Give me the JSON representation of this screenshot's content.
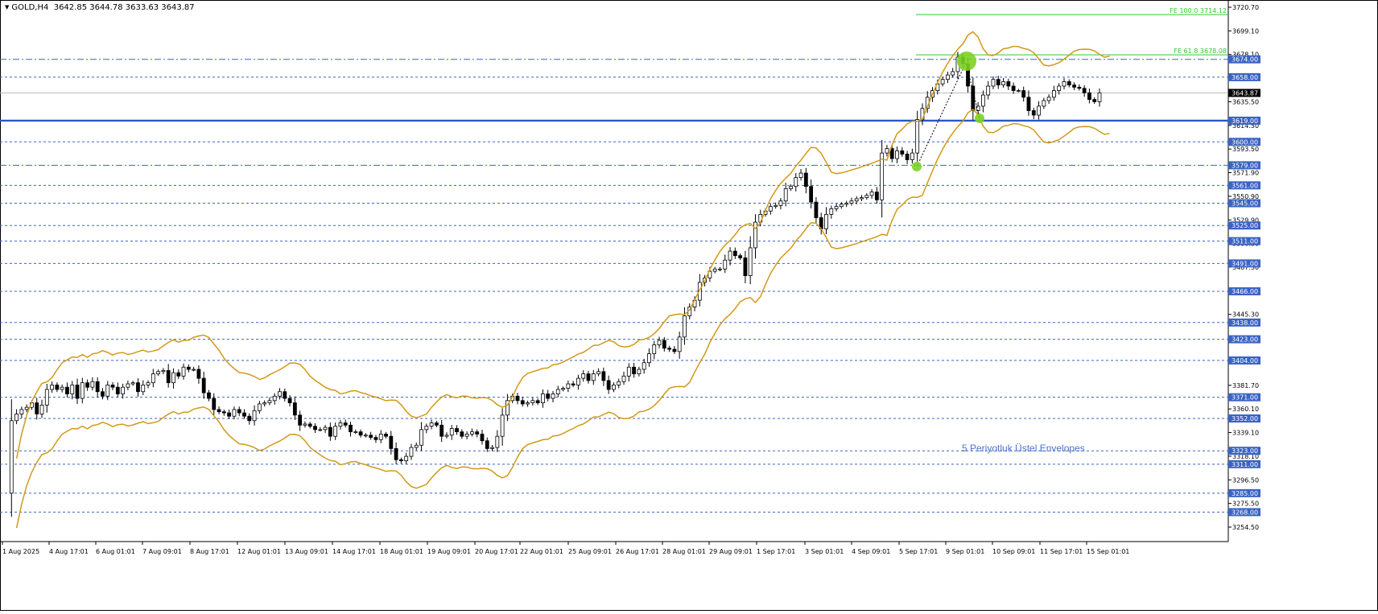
{
  "header": {
    "symbol": "GOLD,H4",
    "ohlc": "3642.85 3644.78 3633.63 3643.87"
  },
  "annotation": "5 Periyotluk Üstel Envelopes",
  "colors": {
    "candle": "#000000",
    "envelope": "#d19a17",
    "hline": "#3b63c4",
    "main_hline": "#2a56c6",
    "fibo": "#32c832",
    "marker": "#7cd322",
    "last_price_line": "#bdbdbd"
  },
  "chart_data": {
    "type": "candlestick",
    "ylim": [
      3254.59,
      3720.7
    ],
    "y_ticks": [
      "3720.70",
      "3699.10",
      "3678.10",
      "3657.10",
      "3635.50",
      "3614.50",
      "3593.50",
      "3571.90",
      "3550.90",
      "3529.90",
      "3508.30",
      "3487.30",
      "3466.30",
      "3445.30",
      "3423.70",
      "3402.70",
      "3381.70",
      "3360.10",
      "3339.10",
      "3318.10",
      "3296.50",
      "3275.50",
      "3254.50"
    ],
    "x_ticks": [
      "1 Aug 2025",
      "4 Aug 17:01",
      "6 Aug 01:01",
      "7 Aug 09:01",
      "8 Aug 17:01",
      "12 Aug 01:01",
      "13 Aug 09:01",
      "14 Aug 17:01",
      "18 Aug 01:01",
      "19 Aug 09:01",
      "20 Aug 17:01",
      "22 Aug 01:01",
      "25 Aug 09:01",
      "26 Aug 17:01",
      "28 Aug 01:01",
      "29 Aug 09:01",
      "1 Sep 17:01",
      "3 Sep 01:01",
      "4 Sep 09:01",
      "5 Sep 17:01",
      "9 Sep 01:01",
      "10 Sep 09:01",
      "11 Sep 17:01",
      "15 Sep 01:01"
    ],
    "current_price": "3643.87",
    "horizontal_levels": [
      {
        "label": "3674.00",
        "value": 3674.0,
        "style": "dashdot"
      },
      {
        "label": "3658.00",
        "value": 3658.0,
        "style": "dashed"
      },
      {
        "label": "3619.00",
        "value": 3619.0,
        "style": "solid"
      },
      {
        "label": "3600.00",
        "value": 3600.0,
        "style": "dashed"
      },
      {
        "label": "3579.00",
        "value": 3579.0,
        "style": "dashdot"
      },
      {
        "label": "3561.00",
        "value": 3561.0,
        "style": "dashed"
      },
      {
        "label": "3545.00",
        "value": 3545.0,
        "style": "dashed"
      },
      {
        "label": "3525.00",
        "value": 3525.0,
        "style": "dashed"
      },
      {
        "label": "3511.00",
        "value": 3511.0,
        "style": "dashed"
      },
      {
        "label": "3491.00",
        "value": 3491.0,
        "style": "dashed"
      },
      {
        "label": "3466.00",
        "value": 3466.0,
        "style": "dashed"
      },
      {
        "label": "3438.00",
        "value": 3438.0,
        "style": "dashed"
      },
      {
        "label": "3423.00",
        "value": 3423.0,
        "style": "dashed"
      },
      {
        "label": "3404.00",
        "value": 3404.0,
        "style": "dashed"
      },
      {
        "label": "3371.00",
        "value": 3371.0,
        "style": "dashed"
      },
      {
        "label": "3352.00",
        "value": 3352.0,
        "style": "dashed"
      },
      {
        "label": "3323.00",
        "value": 3323.0,
        "style": "dashed"
      },
      {
        "label": "3311.00",
        "value": 3311.0,
        "style": "dashed"
      },
      {
        "label": "3285.00",
        "value": 3285.0,
        "style": "dashed"
      },
      {
        "label": "3268.00",
        "value": 3268.0,
        "style": "dashed"
      }
    ],
    "fibo_levels": [
      {
        "label": "FE 100.0 3714.12",
        "value": 3714.12
      },
      {
        "label": "FE 61.8 3678.08",
        "value": 3678.08
      }
    ],
    "closes": [
      3285,
      3350,
      3356,
      3360,
      3362,
      3366,
      3356,
      3364,
      3378,
      3382,
      3378,
      3380,
      3374,
      3382,
      3370,
      3384,
      3380,
      3385,
      3376,
      3372,
      3382,
      3380,
      3374,
      3380,
      3383,
      3384,
      3376,
      3382,
      3384,
      3392,
      3394,
      3395,
      3384,
      3393,
      3390,
      3398,
      3396,
      3396,
      3388,
      3375,
      3370,
      3360,
      3358,
      3357,
      3354,
      3360,
      3357,
      3354,
      3350,
      3359,
      3365,
      3366,
      3368,
      3372,
      3376,
      3370,
      3366,
      3355,
      3346,
      3347,
      3345,
      3342,
      3342,
      3344,
      3336,
      3345,
      3348,
      3346,
      3340,
      3340,
      3337,
      3337,
      3335,
      3333,
      3338,
      3336,
      3325,
      3315,
      3314,
      3318,
      3326,
      3328,
      3342,
      3345,
      3348,
      3346,
      3336,
      3337,
      3343,
      3340,
      3336,
      3338,
      3340,
      3338,
      3332,
      3325,
      3326,
      3336,
      3355,
      3368,
      3372,
      3368,
      3365,
      3366,
      3368,
      3366,
      3374,
      3370,
      3374,
      3378,
      3379,
      3383,
      3382,
      3388,
      3392,
      3386,
      3392,
      3394,
      3386,
      3378,
      3382,
      3385,
      3390,
      3398,
      3392,
      3396,
      3402,
      3410,
      3418,
      3422,
      3415,
      3414,
      3412,
      3425,
      3444,
      3452,
      3458,
      3474,
      3478,
      3484,
      3486,
      3486,
      3494,
      3502,
      3498,
      3496,
      3480,
      3505,
      3528,
      3535,
      3538,
      3542,
      3543,
      3547,
      3558,
      3560,
      3568,
      3572,
      3560,
      3546,
      3532,
      3522,
      3535,
      3540,
      3542,
      3544,
      3545,
      3547,
      3549,
      3550,
      3552,
      3555,
      3548,
      3590,
      3594,
      3585,
      3592,
      3589,
      3584,
      3590,
      3620,
      3630,
      3640,
      3646,
      3652,
      3656,
      3660,
      3663,
      3676,
      3670,
      3650,
      3628,
      3632,
      3642,
      3650,
      3656,
      3651,
      3654,
      3650,
      3646,
      3646,
      3640,
      3628,
      3624,
      3632,
      3637,
      3640,
      3646,
      3650,
      3654,
      3651,
      3649,
      3648,
      3644,
      3638,
      3636,
      3643.87
    ]
  }
}
